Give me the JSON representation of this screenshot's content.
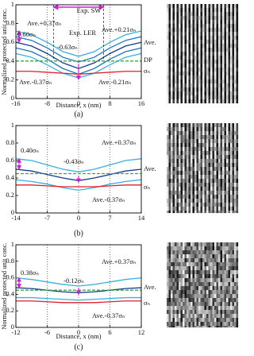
{
  "chart_data": [
    {
      "type": "line",
      "label": "(a)",
      "xlabel": "Distance, x (nm)",
      "ylabel": "Normalized protected unit conc.",
      "x": [
        -16,
        -12,
        -8,
        -4,
        0,
        4,
        8,
        12,
        16
      ],
      "xlim": [
        -16,
        16
      ],
      "xticks": [
        -16,
        -8,
        0,
        8,
        16
      ],
      "ylim": [
        0,
        1
      ],
      "yticks": [
        0,
        0.2,
        0.4,
        0.6,
        0.8,
        1
      ],
      "grid": true,
      "annotations": [
        "Exp. SW",
        "Exp. LER",
        "0.60σₙ",
        "-0.63σₙ"
      ],
      "series": [
        {
          "name": "Ave.+0.37σₙ",
          "color": "#3ab0e0",
          "values": [
            0.72,
            0.68,
            0.6,
            0.5,
            0.45,
            0.5,
            0.6,
            0.68,
            0.72
          ]
        },
        {
          "name": "Ave.+0.21σₙ",
          "color": "#1e74c4",
          "values": [
            0.66,
            0.62,
            0.54,
            0.44,
            0.39,
            0.44,
            0.54,
            0.62,
            0.66
          ]
        },
        {
          "name": "Ave.",
          "color": "#143c8c",
          "values": [
            0.6,
            0.56,
            0.48,
            0.38,
            0.32,
            0.38,
            0.48,
            0.56,
            0.6
          ]
        },
        {
          "name": "Ave.-0.21σₙ",
          "color": "#1e74c4",
          "values": [
            0.54,
            0.5,
            0.42,
            0.32,
            0.26,
            0.32,
            0.42,
            0.5,
            0.54
          ]
        },
        {
          "name": "Ave.-0.37σₙ",
          "color": "#3ab0e0",
          "values": [
            0.48,
            0.44,
            0.36,
            0.27,
            0.22,
            0.27,
            0.36,
            0.44,
            0.48
          ]
        },
        {
          "name": "σₙ",
          "color": "#e0202a",
          "values": [
            0.29,
            0.29,
            0.28,
            0.27,
            0.26,
            0.27,
            0.28,
            0.29,
            0.29
          ]
        },
        {
          "name": "DP",
          "color": "#3aa843",
          "dashed": true,
          "values": [
            0.4,
            0.4,
            0.4,
            0.4,
            0.4,
            0.4,
            0.4,
            0.4,
            0.4
          ]
        }
      ]
    },
    {
      "type": "line",
      "label": "(b)",
      "x": [
        -14,
        -10.5,
        -7,
        -3.5,
        0,
        3.5,
        7,
        10.5,
        14
      ],
      "xlim": [
        -14,
        14
      ],
      "xticks": [
        -14,
        -7,
        0,
        7,
        14
      ],
      "ylim": [
        0,
        1
      ],
      "yticks": [
        0,
        0.2,
        0.4,
        0.6,
        0.8,
        1
      ],
      "grid": true,
      "annotations": [
        "0.40σₙ",
        "-0.43σₙ"
      ],
      "series": [
        {
          "name": "Ave.+0.37σₙ",
          "color": "#3ab0e0",
          "values": [
            0.62,
            0.6,
            0.55,
            0.5,
            0.47,
            0.5,
            0.55,
            0.6,
            0.62
          ]
        },
        {
          "name": "Ave.",
          "color": "#143c8c",
          "values": [
            0.5,
            0.48,
            0.44,
            0.4,
            0.37,
            0.4,
            0.44,
            0.48,
            0.5
          ]
        },
        {
          "name": "Ave.-0.37σₙ",
          "color": "#3ab0e0",
          "values": [
            0.38,
            0.36,
            0.33,
            0.29,
            0.26,
            0.29,
            0.33,
            0.36,
            0.38
          ]
        },
        {
          "name": "σₙ",
          "color": "#e0202a",
          "values": [
            0.32,
            0.32,
            0.31,
            0.3,
            0.3,
            0.3,
            0.31,
            0.32,
            0.32
          ]
        },
        {
          "color": "#3aa843",
          "dashed": true,
          "values": [
            0.45,
            0.45,
            0.45,
            0.45,
            0.45,
            0.45,
            0.45,
            0.45,
            0.45
          ]
        }
      ]
    },
    {
      "type": "line",
      "label": "(c)",
      "xlabel": "Distance, x (nm)",
      "ylabel": "Normalized protected unit conc.",
      "x": [
        -12,
        -9,
        -6,
        -3,
        0,
        3,
        6,
        9,
        12
      ],
      "xlim": [
        -12,
        12
      ],
      "xticks": [
        -12,
        -6,
        0,
        6,
        12
      ],
      "ylim": [
        0,
        1
      ],
      "yticks": [
        0,
        0.2,
        0.4,
        0.6,
        0.8,
        1
      ],
      "grid": true,
      "annotations": [
        "0.38σₙ",
        "-0.12σₙ"
      ],
      "series": [
        {
          "name": "Ave.+0.37σₙ",
          "color": "#3ab0e0",
          "values": [
            0.6,
            0.58,
            0.55,
            0.52,
            0.5,
            0.52,
            0.55,
            0.58,
            0.6
          ]
        },
        {
          "name": "Ave.",
          "color": "#143c8c",
          "values": [
            0.48,
            0.47,
            0.45,
            0.43,
            0.42,
            0.43,
            0.45,
            0.47,
            0.48
          ]
        },
        {
          "name": "Ave.-0.37σₙ",
          "color": "#3ab0e0",
          "values": [
            0.36,
            0.36,
            0.35,
            0.34,
            0.33,
            0.34,
            0.35,
            0.36,
            0.36
          ]
        },
        {
          "name": "σₙ",
          "color": "#e0202a",
          "values": [
            0.32,
            0.32,
            0.31,
            0.3,
            0.3,
            0.3,
            0.31,
            0.32,
            0.32
          ]
        },
        {
          "color": "#3aa843",
          "dashed": true,
          "values": [
            0.45,
            0.45,
            0.45,
            0.45,
            0.45,
            0.45,
            0.45,
            0.45,
            0.45
          ]
        }
      ]
    }
  ]
}
